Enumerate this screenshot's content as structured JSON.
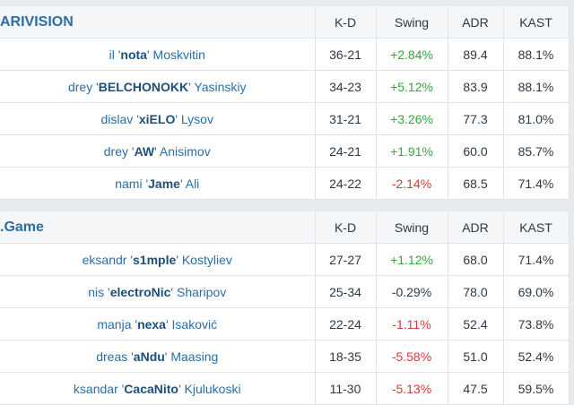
{
  "teams": [
    {
      "name": "ARIVISION",
      "columns": [
        "K-D",
        "Swing",
        "ADR",
        "KAST"
      ],
      "players": [
        {
          "first": "il '",
          "nick": "nota",
          "last": "' Moskvitin",
          "kd": "36-21",
          "swing": "+2.84%",
          "adr": "89.4",
          "kast": "88.1%"
        },
        {
          "first": "drey '",
          "nick": "BELCHONOKK",
          "last": "' Yasinskiy",
          "kd": "34-23",
          "swing": "+5.12%",
          "adr": "83.9",
          "kast": "88.1%"
        },
        {
          "first": "dislav '",
          "nick": "xiELO",
          "last": "' Lysov",
          "kd": "31-21",
          "swing": "+3.26%",
          "adr": "77.3",
          "kast": "81.0%"
        },
        {
          "first": "drey '",
          "nick": "AW",
          "last": "' Anisimov",
          "kd": "24-21",
          "swing": "+1.91%",
          "adr": "60.0",
          "kast": "85.7%"
        },
        {
          "first": "nami '",
          "nick": "Jame",
          "last": "' Ali",
          "kd": "24-22",
          "swing": "-2.14%",
          "adr": "68.5",
          "kast": "71.4%"
        }
      ]
    },
    {
      "name": ".Game",
      "columns": [
        "K-D",
        "Swing",
        "ADR",
        "KAST"
      ],
      "players": [
        {
          "first": "eksandr '",
          "nick": "s1mple",
          "last": "' Kostyliev",
          "kd": "27-27",
          "swing": "+1.12%",
          "adr": "68.0",
          "kast": "71.4%"
        },
        {
          "first": "nis '",
          "nick": "electroNic",
          "last": "' Sharipov",
          "kd": "25-34",
          "swing": "-0.29%",
          "adr": "78.0",
          "kast": "69.0%"
        },
        {
          "first": "manja '",
          "nick": "nexa",
          "last": "' Isaković",
          "kd": "22-24",
          "swing": "-1.11%",
          "adr": "52.4",
          "kast": "73.8%"
        },
        {
          "first": "dreas '",
          "nick": "aNdu",
          "last": "' Maasing",
          "kd": "18-35",
          "swing": "-5.58%",
          "adr": "51.0",
          "kast": "52.4%"
        },
        {
          "first": "ksandar '",
          "nick": "CacaNito",
          "last": "' Kjulukoski",
          "kd": "11-30",
          "swing": "-5.13%",
          "adr": "47.5",
          "kast": "59.5%"
        }
      ]
    }
  ],
  "colors": {
    "team_name": "#2b6ea5",
    "swing_positive": "#3aa63a",
    "swing_negative": "#d63b3b",
    "background": "#e8ebee"
  }
}
